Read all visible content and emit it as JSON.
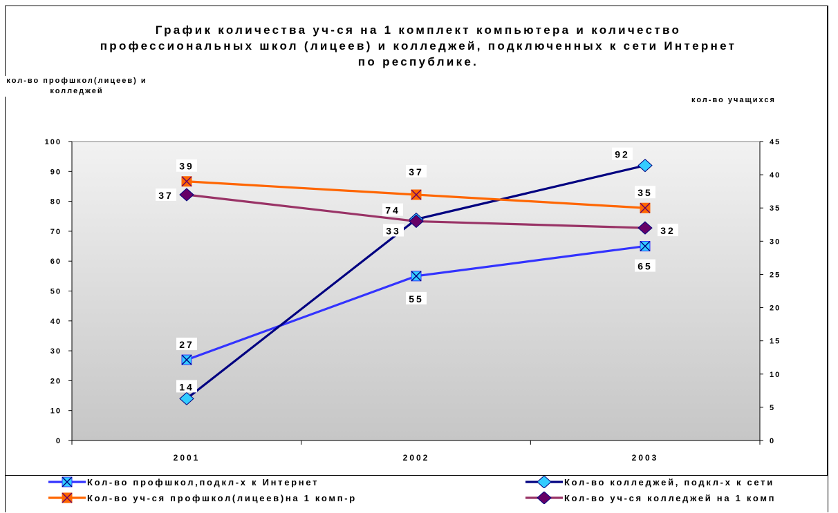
{
  "chart_data": {
    "type": "line",
    "title": "График количества уч-ся на 1 комплект компьютера и количество профессиональных школ (лицеев) и колледжей, подключенных к сети Интернет по республике.",
    "y_left_label": "кол-во профшкол(лицеев) и колледжей",
    "y_right_label": "кол-во учащихся",
    "categories": [
      "2001",
      "2002",
      "2003"
    ],
    "y_left_ticks": [
      "0",
      "10",
      "20",
      "30",
      "40",
      "50",
      "60",
      "70",
      "80",
      "90",
      "100"
    ],
    "y_right_ticks": [
      "0",
      "5",
      "10",
      "15",
      "20",
      "25",
      "30",
      "35",
      "40",
      "45"
    ],
    "y_left_lim": [
      0,
      100
    ],
    "y_right_lim": [
      0,
      45
    ],
    "series": [
      {
        "name": "Кол-во профшкол,подкл-х к Интернет",
        "axis": "left",
        "values": [
          27,
          55,
          65
        ],
        "labels": [
          "27",
          "55",
          "65"
        ],
        "color": "#3333ff",
        "marker": "x-square",
        "marker_fill": "#33ccff"
      },
      {
        "name": "Кол-во колледжей, подкл-х к сети",
        "axis": "left",
        "values": [
          14,
          74,
          92
        ],
        "labels": [
          "14",
          "74",
          "92"
        ],
        "color": "#000080",
        "marker": "diamond",
        "marker_fill": "#33ccff"
      },
      {
        "name": "Кол-во уч-ся профшкол(лицеев)на 1 комп-р",
        "axis": "right",
        "values": [
          39,
          37,
          35
        ],
        "labels": [
          "39",
          "37",
          "35"
        ],
        "color": "#ff6600",
        "marker": "x-square",
        "marker_fill": "#ff6600"
      },
      {
        "name": "Кол-во уч-ся колледжей на 1 комп",
        "axis": "right",
        "values": [
          37,
          33,
          32
        ],
        "labels": [
          "37",
          "33",
          "32"
        ],
        "color": "#993366",
        "marker": "diamond",
        "marker_fill": "#660066"
      }
    ],
    "plot_background": "gradient gray",
    "grid": false,
    "legend_position": "bottom"
  }
}
